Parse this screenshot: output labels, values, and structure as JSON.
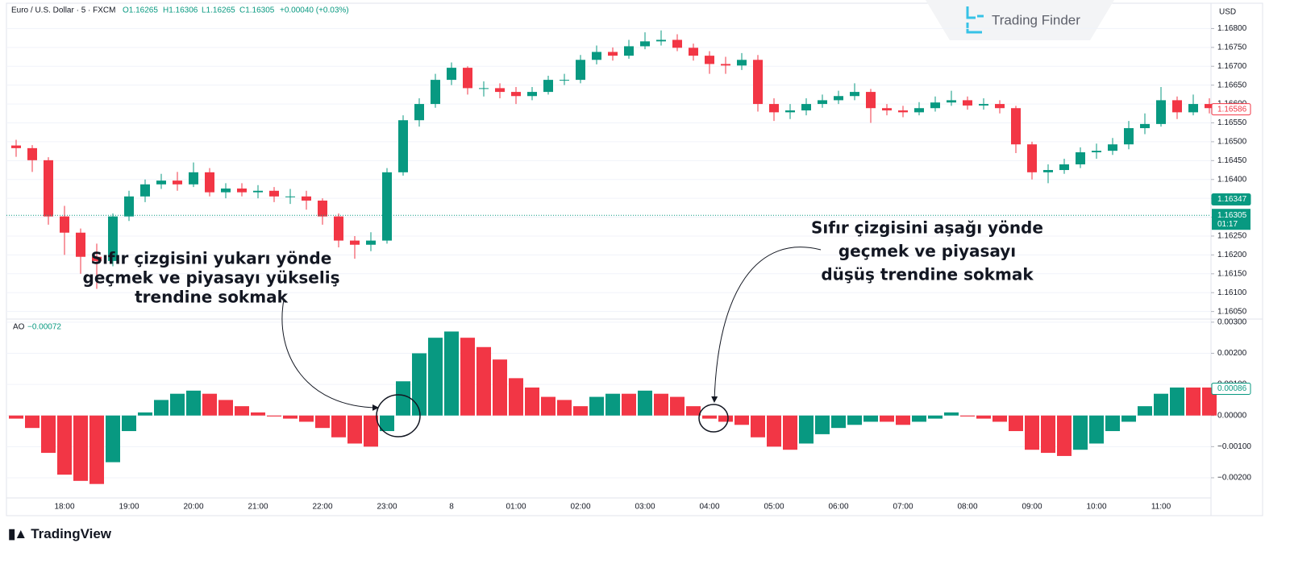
{
  "header": {
    "symbol": "Euro / U.S. Dollar · 5 · FXCM",
    "open": "O1.16265",
    "high": "H1.16306",
    "low": "L1.16265",
    "close": "C1.16305",
    "change": "+0.00040 (+0.03%)",
    "currency": "USD"
  },
  "brand": {
    "watermark": "Trading Finder",
    "footer": "TradingView"
  },
  "annotations": [
    {
      "lines": [
        "Sıfır çizgisini yukarı yönde",
        "geçmek ve piyasayı yükseliş",
        "trendine sokmak"
      ]
    },
    {
      "lines": [
        "Sıfır çizgisini aşağı yönde",
        "geçmek ve piyasayı",
        "düşüş trendine sokmak"
      ]
    }
  ],
  "chart_data": [
    {
      "type": "candlestick",
      "up_color": "#089981",
      "down_color": "#f23645",
      "categories": [
        null,
        null,
        null,
        "18:00",
        null,
        null,
        null,
        "19:00",
        null,
        null,
        null,
        "20:00",
        null,
        null,
        null,
        "21:00",
        null,
        null,
        null,
        "22:00",
        null,
        null,
        null,
        "23:00",
        null,
        null,
        null,
        "8",
        null,
        null,
        null,
        "01:00",
        null,
        null,
        null,
        "02:00",
        null,
        null,
        null,
        "03:00",
        null,
        null,
        null,
        "04:00",
        null,
        null,
        null,
        "05:00",
        null,
        null,
        null,
        "06:00",
        null,
        null,
        null,
        "07:00",
        null,
        null,
        null,
        "08:00",
        null,
        null,
        null,
        "09:00",
        null,
        null,
        null,
        "10:00",
        null,
        null,
        null,
        "11:00",
        null,
        null,
        null
      ],
      "open": [
        1.1649,
        1.16483,
        1.16451,
        1.16302,
        1.16259,
        1.16195,
        1.16184,
        1.16302,
        1.16355,
        1.16387,
        1.16397,
        1.16387,
        1.16419,
        1.16366,
        1.16376,
        1.16366,
        1.1637,
        1.16355,
        1.16355,
        1.16344,
        1.16302,
        1.16238,
        1.16227,
        1.16238,
        1.16419,
        1.16557,
        1.166,
        1.16664,
        1.16696,
        1.16642,
        1.16642,
        1.16632,
        1.16621,
        1.16632,
        1.16664,
        1.16664,
        1.16717,
        1.16738,
        1.16728,
        1.16753,
        1.16766,
        1.1677,
        1.16749,
        1.16728,
        1.16706,
        1.16702,
        1.16717,
        1.166,
        1.16578,
        1.16583,
        1.166,
        1.1661,
        1.16621,
        1.16632,
        1.16589,
        1.16583,
        1.16578,
        1.16589,
        1.16604,
        1.1661,
        1.16596,
        1.166,
        1.16589,
        1.16493,
        1.16419,
        1.16425,
        1.1644,
        1.16472,
        1.16476,
        1.16493,
        1.16536,
        1.16547,
        1.1661,
        1.16578,
        1.166
      ],
      "high": [
        1.16505,
        1.16491,
        1.16459,
        1.1633,
        1.1627,
        1.1623,
        1.1631,
        1.1637,
        1.164,
        1.16415,
        1.1642,
        1.16445,
        1.1643,
        1.1639,
        1.1639,
        1.16385,
        1.1638,
        1.16375,
        1.1637,
        1.1635,
        1.1631,
        1.1625,
        1.1626,
        1.1643,
        1.1657,
        1.16615,
        1.1668,
        1.1671,
        1.167,
        1.1666,
        1.16655,
        1.16645,
        1.16645,
        1.16675,
        1.1668,
        1.1673,
        1.16755,
        1.1675,
        1.1677,
        1.1679,
        1.16795,
        1.16785,
        1.1676,
        1.1674,
        1.16725,
        1.16735,
        1.1673,
        1.16615,
        1.166,
        1.16615,
        1.16625,
        1.16635,
        1.16655,
        1.1664,
        1.166,
        1.16595,
        1.16605,
        1.1662,
        1.16635,
        1.1662,
        1.16615,
        1.1661,
        1.16595,
        1.165,
        1.1644,
        1.16455,
        1.16485,
        1.16495,
        1.1651,
        1.16555,
        1.16575,
        1.16645,
        1.1662,
        1.16625,
        1.16615
      ],
      "low": [
        1.1646,
        1.1642,
        1.1628,
        1.162,
        1.1615,
        1.1611,
        1.1617,
        1.1629,
        1.1634,
        1.16375,
        1.1637,
        1.1638,
        1.16355,
        1.1635,
        1.16355,
        1.1635,
        1.1634,
        1.16335,
        1.1632,
        1.1628,
        1.1622,
        1.1619,
        1.1621,
        1.1623,
        1.1641,
        1.1654,
        1.1659,
        1.1665,
        1.16625,
        1.1662,
        1.16615,
        1.166,
        1.1661,
        1.16625,
        1.1665,
        1.16655,
        1.16705,
        1.16715,
        1.1672,
        1.16745,
        1.16755,
        1.1674,
        1.16715,
        1.1668,
        1.1668,
        1.1669,
        1.1658,
        1.16555,
        1.1656,
        1.1657,
        1.1659,
        1.166,
        1.1661,
        1.1655,
        1.1657,
        1.16565,
        1.1657,
        1.1658,
        1.16595,
        1.16585,
        1.16585,
        1.16575,
        1.1647,
        1.164,
        1.1639,
        1.16415,
        1.1643,
        1.16455,
        1.16465,
        1.1648,
        1.1652,
        1.1654,
        1.1656,
        1.1657,
        1.16575
      ],
      "close": [
        1.16483,
        1.16451,
        1.16302,
        1.16259,
        1.16195,
        1.16184,
        1.16302,
        1.16355,
        1.16387,
        1.16397,
        1.16387,
        1.16419,
        1.16366,
        1.16376,
        1.16366,
        1.1637,
        1.16355,
        1.16355,
        1.16344,
        1.16302,
        1.16238,
        1.16227,
        1.16238,
        1.16419,
        1.16557,
        1.166,
        1.16664,
        1.16696,
        1.16642,
        1.16642,
        1.16632,
        1.16621,
        1.16632,
        1.16664,
        1.16664,
        1.16717,
        1.16738,
        1.16728,
        1.16753,
        1.16766,
        1.1677,
        1.16749,
        1.16728,
        1.16706,
        1.16702,
        1.16717,
        1.166,
        1.16578,
        1.16583,
        1.166,
        1.1661,
        1.16621,
        1.16632,
        1.16589,
        1.16583,
        1.16578,
        1.16589,
        1.16604,
        1.1661,
        1.16596,
        1.166,
        1.16589,
        1.16493,
        1.16419,
        1.16425,
        1.1644,
        1.16472,
        1.16476,
        1.16493,
        1.16536,
        1.16547,
        1.1661,
        1.16578,
        1.166,
        1.16589
      ],
      "ylim": [
        1.1603,
        1.1685
      ],
      "yticks": [
        {
          "value": 1.1605,
          "label": "1.16050"
        },
        {
          "value": 1.161,
          "label": "1.16100"
        },
        {
          "value": 1.1615,
          "label": "1.16150"
        },
        {
          "value": 1.162,
          "label": "1.16200"
        },
        {
          "value": 1.1625,
          "label": "1.16250"
        },
        {
          "value": 1.163,
          "label": "1.16300"
        },
        {
          "value": 1.1635,
          "label": "1.16350"
        },
        {
          "value": 1.164,
          "label": "1.16400"
        },
        {
          "value": 1.1645,
          "label": "1.16450"
        },
        {
          "value": 1.165,
          "label": "1.16500"
        },
        {
          "value": 1.1655,
          "label": "1.16550"
        },
        {
          "value": 1.166,
          "label": "1.16600"
        },
        {
          "value": 1.1665,
          "label": "1.16650"
        },
        {
          "value": 1.167,
          "label": "1.16700"
        },
        {
          "value": 1.1675,
          "label": "1.16750"
        },
        {
          "value": 1.168,
          "label": "1.16800"
        }
      ],
      "markers": [
        {
          "value": 1.16586,
          "label": "1.16586",
          "color": "#f23645",
          "style": "outline"
        },
        {
          "value": 1.16347,
          "label": "1.16347",
          "color": "#089981",
          "style": "filled"
        }
      ],
      "last_price": {
        "value": 1.16305,
        "label": "1.16305",
        "countdown": "01:17",
        "color": "#089981"
      }
    },
    {
      "type": "bar",
      "name": "AO",
      "legend_value": "−0.00072",
      "up_color": "#089981",
      "down_color": "#f23645",
      "values": [
        -0.0001,
        -0.0004,
        -0.0012,
        -0.0019,
        -0.0021,
        -0.0022,
        -0.0015,
        -0.0005,
        0.0001,
        0.0005,
        0.0007,
        0.0008,
        0.0007,
        0.0005,
        0.0003,
        0.0001,
        -3e-05,
        -0.0001,
        -0.0002,
        -0.0004,
        -0.0007,
        -0.0009,
        -0.001,
        -0.0005,
        0.0011,
        0.002,
        0.0025,
        0.0027,
        0.0025,
        0.0022,
        0.0018,
        0.0012,
        0.0009,
        0.0006,
        0.0005,
        0.0003,
        0.0006,
        0.0007,
        0.0007,
        0.0008,
        0.0007,
        0.0006,
        0.0003,
        -0.0001,
        -0.0002,
        -0.0003,
        -0.0007,
        -0.001,
        -0.0011,
        -0.0009,
        -0.0006,
        -0.0004,
        -0.0003,
        -0.0002,
        -0.0002,
        -0.0003,
        -0.0002,
        -0.0001,
        0.0001,
        -3e-05,
        -0.0001,
        -0.0002,
        -0.0005,
        -0.0011,
        -0.0012,
        -0.0013,
        -0.0011,
        -0.0009,
        -0.0005,
        -0.0002,
        0.0003,
        0.0007,
        0.0009,
        0.0009,
        0.0009
      ],
      "ylim": [
        -0.0027,
        0.0031
      ],
      "yticks": [
        {
          "value": 0.003,
          "label": "0.00300"
        },
        {
          "value": 0.002,
          "label": "0.00200"
        },
        {
          "value": 0.001,
          "label": "0.00100"
        },
        {
          "value": 0,
          "label": "0.00000"
        },
        {
          "value": -0.001,
          "label": "−0.00100"
        },
        {
          "value": -0.002,
          "label": "−0.00200"
        }
      ],
      "markers": [
        {
          "value": 0.00086,
          "label": "0.00086",
          "color": "#089981",
          "style": "outline"
        }
      ]
    }
  ]
}
